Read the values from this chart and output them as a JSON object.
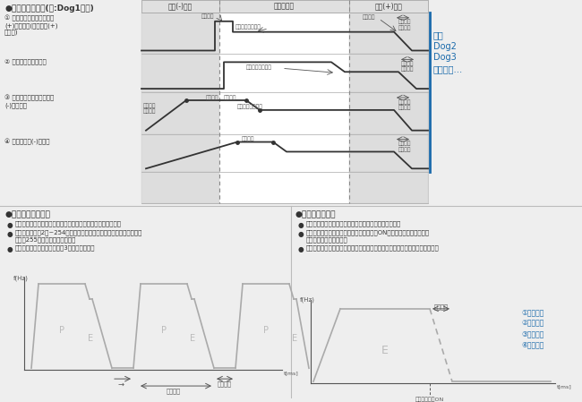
{
  "bg_color": "#eeeeee",
  "title_top": "●多功能原点复位(例:Dog1方式)",
  "col_labels": [
    "限位(-)开关",
    "近原点开关",
    "限位(+)开关"
  ],
  "row_labels": [
    "① 起点为近原点开关和限位\n(+)开关之间(包括限位(+)\n开关上)",
    "② 起点为近原点开关上",
    "③ 起点为近原点开关和限位\n(-)开关之间",
    "④ 起点为限位(-)开关上"
  ],
  "right_text": [
    "其他",
    "Dog2",
    "Dog3",
    "原点方式…"
  ],
  "s2_title": "●重复动作输出功能",
  "s2_b1": "位置控制重复功能是按指定重复次数连续进行位置控制的功能。",
  "s2_b2": "重复次数可以在2次~254次的范围内指定，也可以将位置控制重复次数\n设定为255，指定为无限次重复。",
  "s2_b3": "下图所示为位置控制重复执行3次时的动作图。",
  "s3_title": "●多功能停止方式",
  "s3_b1": "停止有多种方式，如系统停止、紧急停止、减速停止等。",
  "s3_b2": "下图所示为紧急停止，将紧急停止触点置于ON时，停止已启动的动作，\n停止对应轴的脉冲输出。",
  "s3_b3": "按编程软件的位置控制参数设定菜单中设定的紧急停止减速时间进行减速停止。",
  "legend": [
    "①系统停止",
    "②紧急停止",
    "③限位停止",
    "④减速停止"
  ],
  "blue": "#1a6aab",
  "dark": "#333333",
  "mid": "#666666",
  "gray_line": "#999999",
  "wave_gray": "#aaaaaa",
  "cell_shade": "#dddddd",
  "header_shade": "#e0e0e0"
}
